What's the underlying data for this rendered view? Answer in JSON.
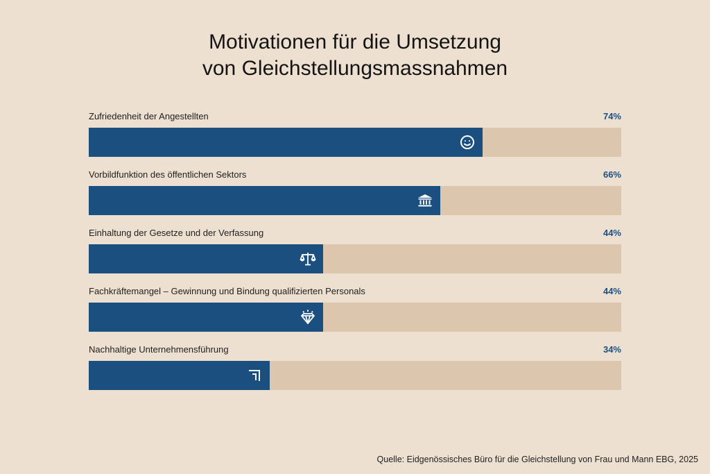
{
  "chart_data": {
    "type": "bar",
    "orientation": "horizontal",
    "title": [
      "Motivationen für die Umsetzung",
      "von Gleichstellungsmassnahmen"
    ],
    "categories": [
      "Zufriedenheit der Angestellten",
      "Vorbildfunktion des öffentlichen Sektors",
      "Einhaltung der Gesetze und der Verfassung",
      "Fachkräftemangel – Gewinnung und Bindung qualifizierten Personals",
      "Nachhaltige Unternehmensführung"
    ],
    "values": [
      74,
      66,
      44,
      44,
      34
    ],
    "value_labels": [
      "74%",
      "66%",
      "44%",
      "44%",
      "34%"
    ],
    "icons": [
      "smiley-icon",
      "government-building-icon",
      "scales-icon",
      "diamond-icon",
      "corner-arrow-icon"
    ],
    "xlim": [
      0,
      100
    ],
    "grid": false,
    "colors": {
      "fill": "#1a4f80",
      "track": "#dcc7ae",
      "background": "#ede0d0",
      "value_text": "#1b4f82"
    }
  },
  "source": "Quelle: Eidgenössisches Büro für die Gleichstellung von Frau und Mann EBG, 2025"
}
